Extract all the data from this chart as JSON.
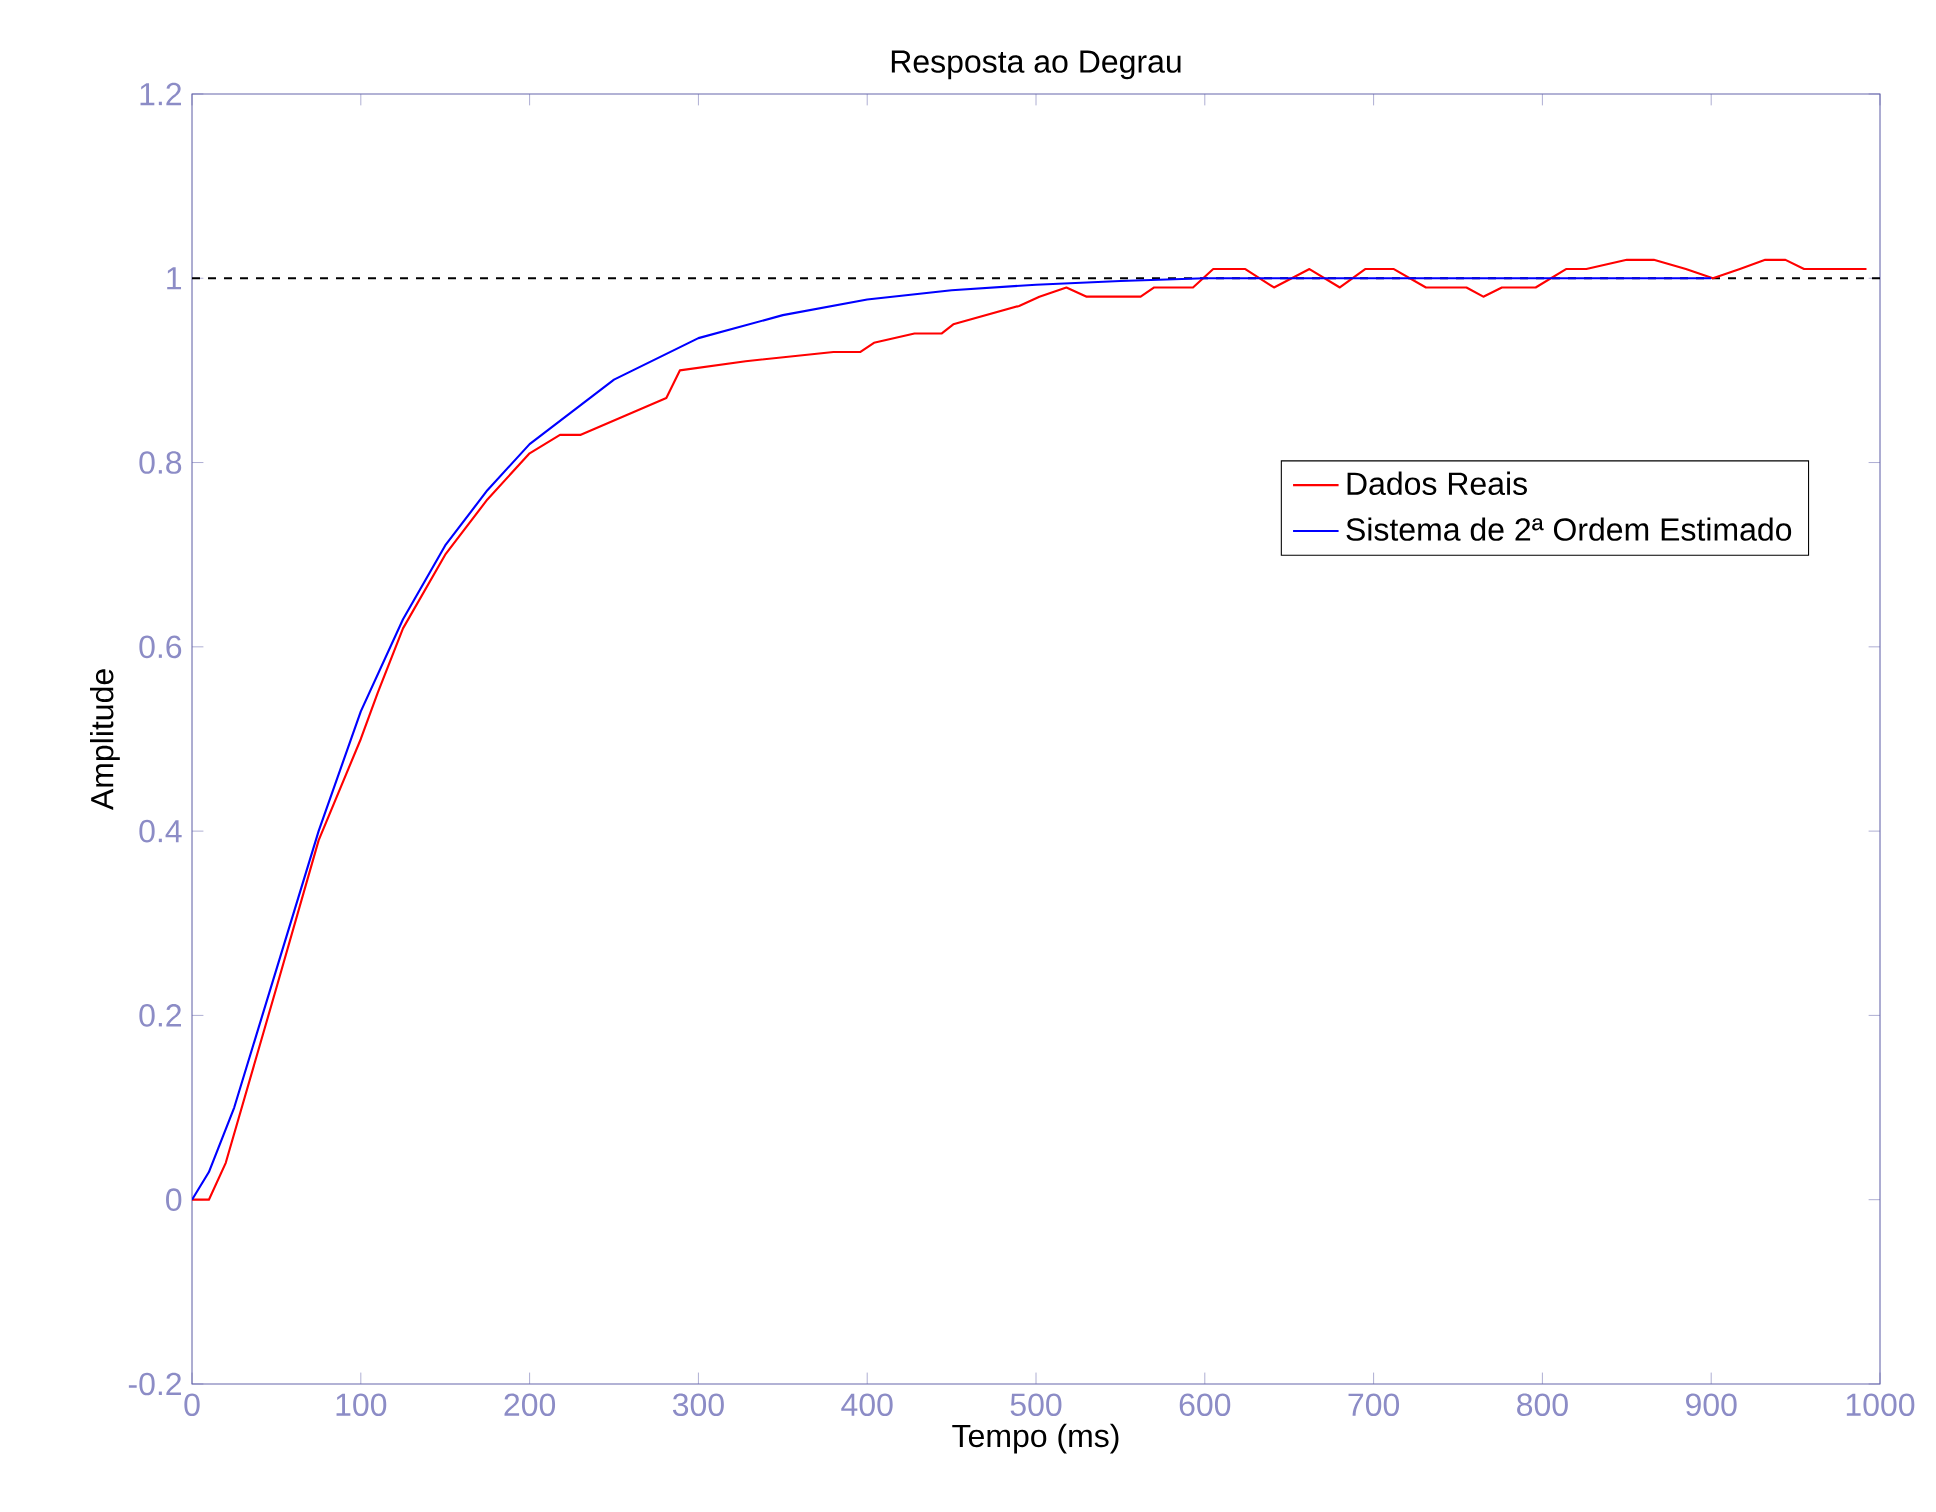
{
  "chart_data": {
    "type": "line",
    "title": "Resposta ao Degrau",
    "xlabel": "Tempo (ms)",
    "ylabel": "Amplitude",
    "xlim": [
      0,
      1000
    ],
    "ylim": [
      -0.2,
      1.2
    ],
    "xticks": [
      0,
      100,
      200,
      300,
      400,
      500,
      600,
      700,
      800,
      900,
      1000
    ],
    "yticks": [
      -0.2,
      0,
      0.2,
      0.4,
      0.6,
      0.8,
      1,
      1.2
    ],
    "grid": false,
    "legend": "right",
    "marker": "none",
    "line_style": "solid",
    "ref_lines": [
      {
        "axis": "y",
        "value": 1,
        "color": "#000000",
        "line_style": "dashed"
      }
    ],
    "series": [
      {
        "name": "Dados Reais",
        "color": "#ff0000",
        "x": [
          0,
          10,
          20,
          50,
          75,
          100,
          110,
          125,
          150,
          175,
          200,
          218,
          230,
          281,
          289,
          328,
          380,
          396,
          404,
          428,
          444,
          451,
          490,
          502,
          518,
          530,
          541,
          562,
          570,
          593,
          605,
          609,
          624,
          641,
          662,
          680,
          695,
          712,
          731,
          755,
          765,
          776,
          796,
          814,
          826,
          850,
          866,
          885,
          901,
          917,
          932,
          944,
          955,
          965,
          980,
          992
        ],
        "values": [
          0,
          0,
          0.04,
          0.23,
          0.39,
          0.5,
          0.55,
          0.62,
          0.7,
          0.76,
          0.81,
          0.83,
          0.83,
          0.87,
          0.9,
          0.91,
          0.92,
          0.92,
          0.93,
          0.94,
          0.94,
          0.95,
          0.97,
          0.98,
          0.99,
          0.98,
          0.98,
          0.98,
          0.99,
          0.99,
          1.01,
          1.01,
          1.01,
          0.99,
          1.01,
          0.99,
          1.01,
          1.01,
          0.99,
          0.99,
          0.98,
          0.99,
          0.99,
          1.01,
          1.01,
          1.02,
          1.02,
          1.01,
          1.0,
          1.01,
          1.02,
          1.02,
          1.01,
          1.01,
          1.01,
          1.01
        ]
      },
      {
        "name": "Sistema de 2ª Ordem Estimado",
        "color": "#0000ff",
        "x": [
          0,
          10,
          25,
          50,
          75,
          100,
          125,
          150,
          175,
          200,
          250,
          300,
          350,
          400,
          450,
          500,
          550,
          600,
          900
        ],
        "values": [
          0,
          0.03,
          0.1,
          0.25,
          0.4,
          0.53,
          0.63,
          0.71,
          0.77,
          0.82,
          0.89,
          0.935,
          0.96,
          0.977,
          0.987,
          0.993,
          0.997,
          1.0,
          1.0
        ]
      }
    ]
  }
}
